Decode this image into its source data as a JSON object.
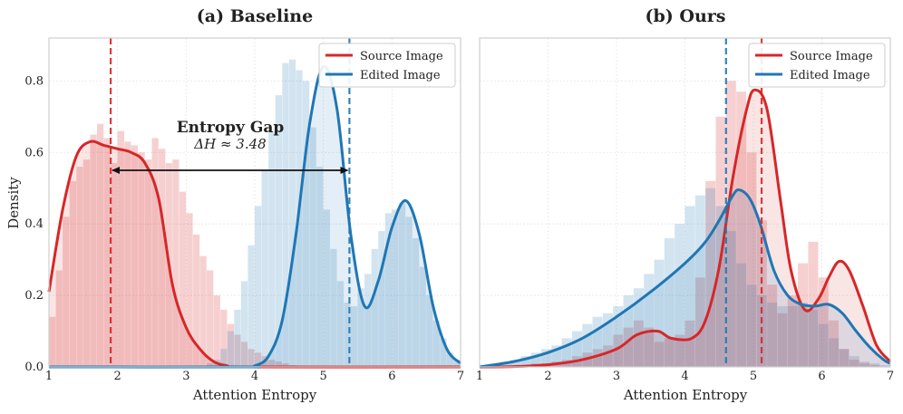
{
  "chart_data": [
    {
      "type": "area",
      "title": "(a) Baseline",
      "xlabel": "Attention Entropy",
      "ylabel": "Density",
      "xlim": [
        1,
        7
      ],
      "ylim": [
        0,
        0.92
      ],
      "xticks": [
        1,
        2,
        3,
        4,
        5,
        6,
        7
      ],
      "yticks": [
        0.0,
        0.2,
        0.4,
        0.6,
        0.8
      ],
      "grid": true,
      "legend_position": "top-right",
      "series": [
        {
          "name": "Source Image",
          "color": "#d62728",
          "kde": [
            [
              1.0,
              0.21
            ],
            [
              1.2,
              0.44
            ],
            [
              1.4,
              0.59
            ],
            [
              1.6,
              0.63
            ],
            [
              1.8,
              0.62
            ],
            [
              2.0,
              0.61
            ],
            [
              2.2,
              0.6
            ],
            [
              2.4,
              0.57
            ],
            [
              2.6,
              0.47
            ],
            [
              2.8,
              0.23
            ],
            [
              3.0,
              0.11
            ],
            [
              3.2,
              0.05
            ],
            [
              3.4,
              0.015
            ],
            [
              3.6,
              0.003
            ],
            [
              3.8,
              0.0
            ],
            [
              7.0,
              0.0
            ]
          ],
          "mean": 1.9,
          "hist_bin_width": 0.1,
          "hist_values": [
            0.14,
            0.27,
            0.42,
            0.52,
            0.56,
            0.58,
            0.65,
            0.68,
            0.64,
            0.57,
            0.66,
            0.63,
            0.62,
            0.6,
            0.58,
            0.64,
            0.61,
            0.57,
            0.58,
            0.49,
            0.43,
            0.37,
            0.31,
            0.27,
            0.2,
            0.16,
            0.12,
            0.09,
            0.07,
            0.05,
            0.04,
            0.03,
            0.02,
            0.015,
            0.01,
            0.005
          ]
        },
        {
          "name": "Edited Image",
          "color": "#1f77b4",
          "kde": [
            [
              1.0,
              0.0
            ],
            [
              3.8,
              0.0
            ],
            [
              4.0,
              0.003
            ],
            [
              4.2,
              0.03
            ],
            [
              4.4,
              0.13
            ],
            [
              4.6,
              0.37
            ],
            [
              4.8,
              0.68
            ],
            [
              5.0,
              0.84
            ],
            [
              5.2,
              0.72
            ],
            [
              5.4,
              0.37
            ],
            [
              5.6,
              0.17
            ],
            [
              5.8,
              0.24
            ],
            [
              6.0,
              0.39
            ],
            [
              6.2,
              0.465
            ],
            [
              6.4,
              0.37
            ],
            [
              6.6,
              0.17
            ],
            [
              6.8,
              0.05
            ],
            [
              7.0,
              0.01
            ]
          ],
          "mean": 5.38,
          "hist_bin_width": 0.1,
          "hist_values": [
            0.01,
            0.02,
            0.05,
            0.1,
            0.16,
            0.24,
            0.34,
            0.45,
            0.55,
            0.66,
            0.76,
            0.85,
            0.86,
            0.83,
            0.8,
            0.67,
            0.56,
            0.44,
            0.33,
            0.24,
            0.18,
            0.17,
            0.22,
            0.26,
            0.33,
            0.38,
            0.43,
            0.44,
            0.46,
            0.42,
            0.36,
            0.28,
            0.2,
            0.13,
            0.08,
            0.04,
            0.02
          ]
        }
      ],
      "annotation": {
        "title": "Entropy Gap",
        "subtitle": "ΔH ≈ 3.48",
        "arrow_from": [
          1.9,
          0.55
        ],
        "arrow_to": [
          5.38,
          0.55
        ]
      }
    },
    {
      "type": "area",
      "title": "(b) Ours",
      "xlabel": "Attention Entropy",
      "ylabel": "",
      "xlim": [
        1,
        7
      ],
      "ylim": [
        0,
        0.92
      ],
      "xticks": [
        1,
        2,
        3,
        4,
        5,
        6,
        7
      ],
      "yticks": [],
      "grid": true,
      "legend_position": "top-right",
      "series": [
        {
          "name": "Source Image",
          "color": "#d62728",
          "kde": [
            [
              1.0,
              0.0
            ],
            [
              1.5,
              0.001
            ],
            [
              2.0,
              0.006
            ],
            [
              2.5,
              0.02
            ],
            [
              3.0,
              0.05
            ],
            [
              3.3,
              0.09
            ],
            [
              3.6,
              0.1
            ],
            [
              3.8,
              0.08
            ],
            [
              4.1,
              0.08
            ],
            [
              4.3,
              0.13
            ],
            [
              4.5,
              0.28
            ],
            [
              4.7,
              0.53
            ],
            [
              4.9,
              0.72
            ],
            [
              5.02,
              0.775
            ],
            [
              5.2,
              0.72
            ],
            [
              5.4,
              0.46
            ],
            [
              5.55,
              0.27
            ],
            [
              5.75,
              0.16
            ],
            [
              5.95,
              0.19
            ],
            [
              6.1,
              0.25
            ],
            [
              6.25,
              0.295
            ],
            [
              6.4,
              0.27
            ],
            [
              6.6,
              0.17
            ],
            [
              6.8,
              0.06
            ],
            [
              7.0,
              0.015
            ]
          ],
          "mean": 5.12,
          "hist_bin_width": 0.15,
          "hist_values": [
            0.0,
            0.0,
            0.0,
            0.005,
            0.005,
            0.01,
            0.01,
            0.015,
            0.02,
            0.03,
            0.04,
            0.05,
            0.06,
            0.09,
            0.11,
            0.13,
            0.11,
            0.07,
            0.08,
            0.09,
            0.13,
            0.25,
            0.52,
            0.7,
            0.8,
            0.77,
            0.6,
            0.41,
            0.23,
            0.15,
            0.2,
            0.29,
            0.35,
            0.25,
            0.13,
            0.05,
            0.02,
            0.01,
            0.005,
            0.0
          ]
        },
        {
          "name": "Edited Image",
          "color": "#1f77b4",
          "kde": [
            [
              1.0,
              0.0
            ],
            [
              1.5,
              0.015
            ],
            [
              2.0,
              0.04
            ],
            [
              2.5,
              0.08
            ],
            [
              3.0,
              0.14
            ],
            [
              3.5,
              0.21
            ],
            [
              4.0,
              0.29
            ],
            [
              4.3,
              0.35
            ],
            [
              4.5,
              0.41
            ],
            [
              4.7,
              0.48
            ],
            [
              4.8,
              0.495
            ],
            [
              4.95,
              0.47
            ],
            [
              5.1,
              0.4
            ],
            [
              5.3,
              0.27
            ],
            [
              5.5,
              0.2
            ],
            [
              5.7,
              0.175
            ],
            [
              5.9,
              0.17
            ],
            [
              6.1,
              0.175
            ],
            [
              6.3,
              0.15
            ],
            [
              6.5,
              0.1
            ],
            [
              6.7,
              0.055
            ],
            [
              6.9,
              0.02
            ],
            [
              7.0,
              0.01
            ]
          ],
          "mean": 4.6,
          "hist_bin_width": 0.15,
          "hist_values": [
            0.005,
            0.01,
            0.015,
            0.02,
            0.03,
            0.04,
            0.05,
            0.06,
            0.08,
            0.1,
            0.12,
            0.14,
            0.15,
            0.17,
            0.2,
            0.22,
            0.26,
            0.3,
            0.36,
            0.4,
            0.45,
            0.48,
            0.5,
            0.45,
            0.38,
            0.29,
            0.23,
            0.2,
            0.18,
            0.17,
            0.17,
            0.18,
            0.16,
            0.12,
            0.08,
            0.05,
            0.03,
            0.015,
            0.01,
            0.005
          ]
        }
      ]
    }
  ]
}
